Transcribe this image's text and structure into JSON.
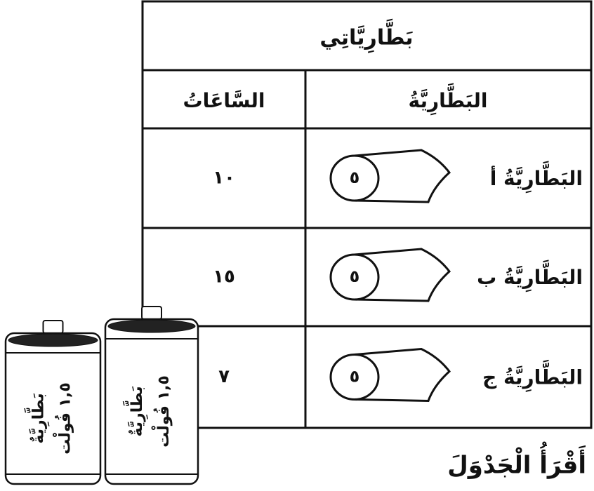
{
  "table": {
    "title": "بَطَّارِيَّاتِي",
    "headers": {
      "hours": "السَّاعَاتُ",
      "battery": "البَطَّارِيَّةُ"
    },
    "rows": [
      {
        "battery": "البَطَّارِيَّةُ أ",
        "icon_label": "٥",
        "hours": "١٠"
      },
      {
        "battery": "البَطَّارِيَّةُ ب",
        "icon_label": "٥",
        "hours": "١٥"
      },
      {
        "battery": "البَطَّارِيَّةُ ج",
        "icon_label": "٥",
        "hours": "٧"
      }
    ]
  },
  "batteries": [
    {
      "name": "بَطَّارِيَّةٌ",
      "voltage": "١,٥ فُولْت"
    },
    {
      "name": "بَطَّارِيَّةٌ",
      "voltage": "١,٥ فُولْت"
    }
  ],
  "caption": "أَقْرَأُ الْجَدْوَلَ"
}
